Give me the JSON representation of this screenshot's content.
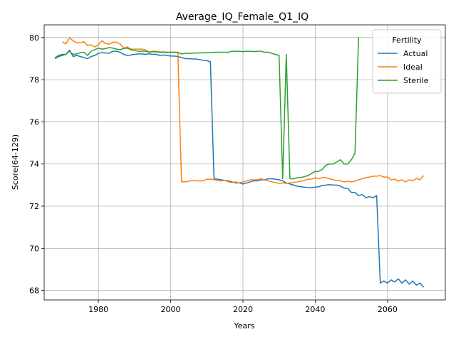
{
  "chart_data": {
    "type": "line",
    "title": "Average_IQ_Female_Q1_IQ",
    "xlabel": "Years",
    "ylabel": "Score(64-129)",
    "xlim": [
      1965,
      2076
    ],
    "ylim": [
      67.55,
      80.6
    ],
    "xticks": [
      1980,
      2000,
      2020,
      2040,
      2060
    ],
    "yticks": [
      68,
      70,
      72,
      74,
      76,
      78,
      80
    ],
    "grid": true,
    "legend": {
      "title": "Fertility",
      "position": "top-right"
    },
    "series": [
      {
        "name": "Actual",
        "color": "#1f77b4",
        "x": [
          1968,
          1969,
          1970,
          1971,
          1972,
          1973,
          1974,
          1975,
          1976,
          1977,
          1978,
          1979,
          1980,
          1981,
          1982,
          1983,
          1984,
          1985,
          1986,
          1987,
          1988,
          1989,
          1990,
          1991,
          1992,
          1993,
          1994,
          1995,
          1996,
          1997,
          1998,
          1999,
          2000,
          2001,
          2002,
          2003,
          2004,
          2005,
          2006,
          2007,
          2008,
          2009,
          2010,
          2011,
          2012,
          2013,
          2014,
          2015,
          2016,
          2017,
          2018,
          2019,
          2020,
          2021,
          2022,
          2023,
          2024,
          2025,
          2026,
          2027,
          2028,
          2029,
          2030,
          2031,
          2032,
          2033,
          2034,
          2035,
          2036,
          2037,
          2038,
          2039,
          2040,
          2041,
          2042,
          2043,
          2044,
          2045,
          2046,
          2047,
          2048,
          2049,
          2050,
          2051,
          2052,
          2053,
          2054,
          2055,
          2056,
          2057,
          2058,
          2059,
          2060,
          2061,
          2062,
          2063,
          2064,
          2065,
          2066,
          2067,
          2068,
          2069,
          2070
        ],
        "y": [
          79.0,
          79.1,
          79.15,
          79.2,
          79.4,
          79.1,
          79.15,
          79.1,
          79.05,
          79.0,
          79.1,
          79.15,
          79.25,
          79.28,
          79.27,
          79.25,
          79.35,
          79.35,
          79.3,
          79.2,
          79.15,
          79.17,
          79.2,
          79.22,
          79.22,
          79.2,
          79.23,
          79.2,
          79.2,
          79.15,
          79.17,
          79.15,
          79.12,
          79.12,
          79.1,
          79.05,
          79.0,
          79.0,
          78.98,
          78.98,
          78.95,
          78.92,
          78.9,
          78.85,
          73.3,
          73.28,
          73.25,
          73.22,
          73.2,
          73.15,
          73.1,
          73.1,
          73.05,
          73.1,
          73.15,
          73.2,
          73.2,
          73.25,
          73.25,
          73.3,
          73.3,
          73.28,
          73.25,
          73.2,
          73.1,
          73.05,
          73.0,
          72.95,
          72.92,
          72.9,
          72.88,
          72.87,
          72.9,
          72.92,
          72.98,
          73.0,
          73.02,
          73.0,
          73.0,
          72.95,
          72.85,
          72.85,
          72.65,
          72.65,
          72.5,
          72.55,
          72.4,
          72.45,
          72.4,
          72.5,
          68.35,
          68.45,
          68.35,
          68.5,
          68.4,
          68.55,
          68.35,
          68.5,
          68.3,
          68.45,
          68.25,
          68.35,
          68.15
        ]
      },
      {
        "name": "Ideal",
        "color": "#ff7f0e",
        "x": [
          1970,
          1971,
          1972,
          1973,
          1974,
          1975,
          1976,
          1977,
          1978,
          1979,
          1980,
          1981,
          1982,
          1983,
          1984,
          1985,
          1986,
          1987,
          1988,
          1989,
          1990,
          1991,
          1992,
          1993,
          1994,
          1995,
          1996,
          1997,
          1998,
          1999,
          2000,
          2001,
          2002,
          2003,
          2004,
          2005,
          2006,
          2007,
          2008,
          2009,
          2010,
          2011,
          2012,
          2013,
          2014,
          2015,
          2016,
          2017,
          2018,
          2019,
          2020,
          2021,
          2022,
          2023,
          2024,
          2025,
          2026,
          2027,
          2028,
          2029,
          2030,
          2031,
          2032,
          2033,
          2034,
          2035,
          2036,
          2037,
          2038,
          2039,
          2040,
          2041,
          2042,
          2043,
          2044,
          2045,
          2046,
          2047,
          2048,
          2049,
          2050,
          2051,
          2052,
          2053,
          2054,
          2055,
          2056,
          2057,
          2058,
          2059,
          2060,
          2061,
          2062,
          2063,
          2064,
          2065,
          2066,
          2067,
          2068,
          2069,
          2070
        ],
        "y": [
          79.8,
          79.7,
          79.98,
          79.85,
          79.75,
          79.75,
          79.8,
          79.62,
          79.65,
          79.55,
          79.65,
          79.85,
          79.72,
          79.68,
          79.78,
          79.78,
          79.7,
          79.5,
          79.55,
          79.45,
          79.45,
          79.45,
          79.45,
          79.42,
          79.3,
          79.35,
          79.35,
          79.32,
          79.32,
          79.3,
          79.3,
          79.3,
          79.28,
          73.15,
          73.15,
          73.18,
          73.22,
          73.2,
          73.2,
          73.2,
          73.28,
          73.28,
          73.25,
          73.22,
          73.2,
          73.22,
          73.15,
          73.12,
          73.15,
          73.1,
          73.15,
          73.2,
          73.25,
          73.25,
          73.25,
          73.3,
          73.25,
          73.2,
          73.15,
          73.12,
          73.08,
          73.1,
          73.08,
          73.1,
          73.12,
          73.15,
          73.18,
          73.22,
          73.28,
          73.28,
          73.35,
          73.3,
          73.35,
          73.35,
          73.3,
          73.25,
          73.22,
          73.2,
          73.15,
          73.18,
          73.15,
          73.18,
          73.25,
          73.3,
          73.35,
          73.38,
          73.42,
          73.42,
          73.45,
          73.38,
          73.38,
          73.25,
          73.28,
          73.18,
          73.25,
          73.15,
          73.25,
          73.2,
          73.32,
          73.25,
          73.45
        ]
      },
      {
        "name": "Sterile",
        "color": "#2ca02c",
        "x": [
          1968,
          1969,
          1970,
          1971,
          1972,
          1973,
          1974,
          1975,
          1976,
          1977,
          1978,
          1979,
          1980,
          1981,
          1982,
          1983,
          1984,
          1985,
          1986,
          1987,
          1988,
          1989,
          1990,
          1991,
          1992,
          1993,
          1994,
          1995,
          1996,
          1997,
          1998,
          1999,
          2000,
          2001,
          2002,
          2003,
          2004,
          2005,
          2006,
          2007,
          2008,
          2009,
          2010,
          2011,
          2012,
          2013,
          2014,
          2015,
          2016,
          2017,
          2018,
          2019,
          2020,
          2021,
          2022,
          2023,
          2024,
          2025,
          2026,
          2027,
          2028,
          2029,
          2030,
          2031,
          2032,
          2033,
          2034,
          2035,
          2036,
          2037,
          2038,
          2039,
          2040,
          2041,
          2042,
          2043,
          2044,
          2045,
          2046,
          2047,
          2048,
          2049,
          2050,
          2051,
          2052
        ],
        "y": [
          79.05,
          79.15,
          79.2,
          79.2,
          79.35,
          79.2,
          79.22,
          79.28,
          79.3,
          79.15,
          79.35,
          79.42,
          79.5,
          79.45,
          79.48,
          79.52,
          79.5,
          79.45,
          79.42,
          79.48,
          79.5,
          79.42,
          79.38,
          79.35,
          79.35,
          79.35,
          79.32,
          79.32,
          79.32,
          79.3,
          79.3,
          79.28,
          79.3,
          79.3,
          79.3,
          79.22,
          79.25,
          79.25,
          79.25,
          79.27,
          79.27,
          79.28,
          79.28,
          79.28,
          79.3,
          79.3,
          79.3,
          79.3,
          79.3,
          79.35,
          79.35,
          79.35,
          79.33,
          79.35,
          79.35,
          79.33,
          79.35,
          79.35,
          79.3,
          79.3,
          79.25,
          79.2,
          79.15,
          73.3,
          79.2,
          73.3,
          73.3,
          73.35,
          73.35,
          73.4,
          73.45,
          73.55,
          73.65,
          73.65,
          73.75,
          73.95,
          74.0,
          74.0,
          74.1,
          74.2,
          74.0,
          74.0,
          74.2,
          74.5,
          80.02
        ]
      }
    ]
  }
}
